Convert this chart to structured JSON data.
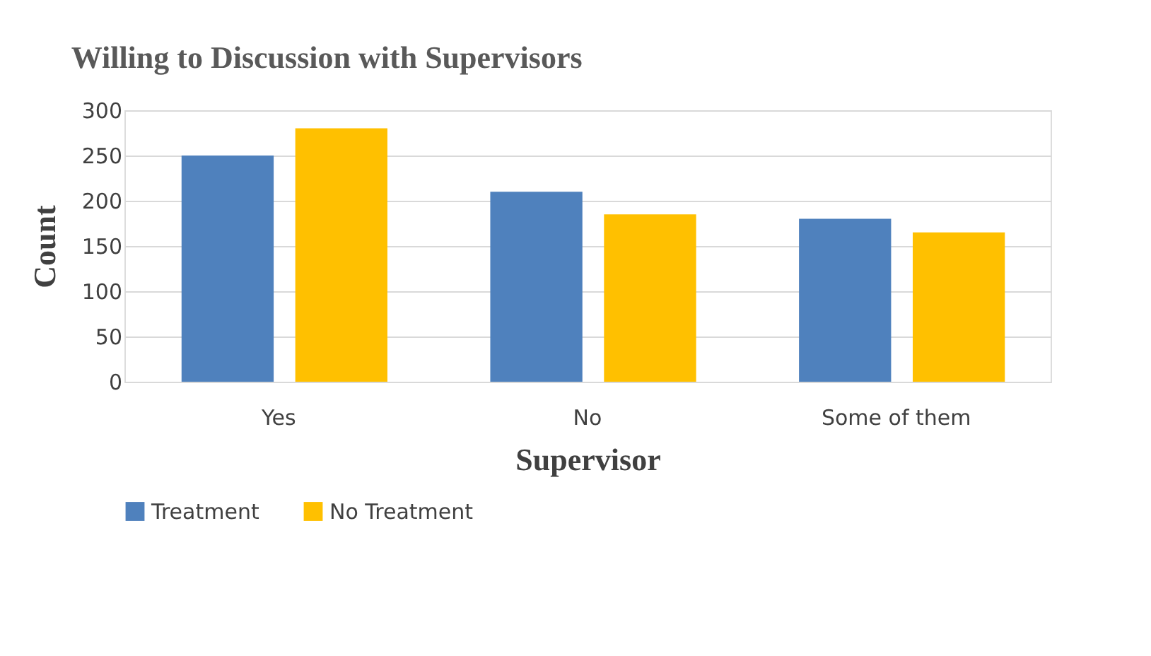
{
  "chart_data": {
    "type": "bar",
    "title": "Willing to Discussion with Supervisors",
    "xlabel": "Supervisor",
    "ylabel": "Count",
    "categories": [
      "Yes",
      "No",
      "Some of them"
    ],
    "series": [
      {
        "name": "Treatment",
        "color": "#4f81bd",
        "values": [
          250,
          210,
          180
        ]
      },
      {
        "name": "No Treatment",
        "color": "#ffc000",
        "values": [
          280,
          185,
          165
        ]
      }
    ],
    "ylim": [
      0,
      300
    ],
    "yticks": [
      0,
      50,
      100,
      150,
      200,
      250,
      300
    ],
    "grid": "y",
    "legend": "bottom"
  }
}
